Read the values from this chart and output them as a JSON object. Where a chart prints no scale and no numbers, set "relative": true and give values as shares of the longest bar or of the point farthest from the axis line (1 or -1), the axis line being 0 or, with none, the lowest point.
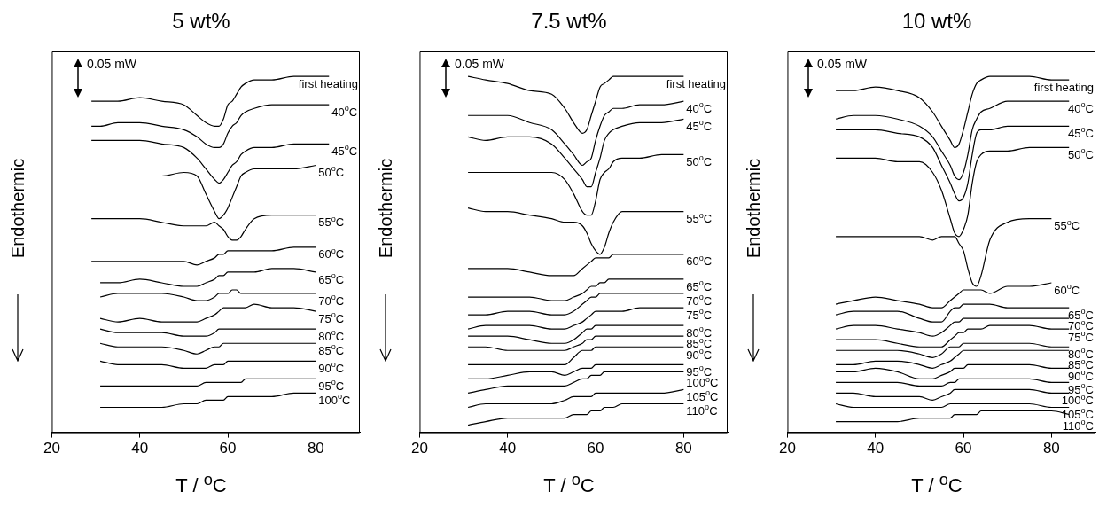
{
  "chart_data": [
    {
      "type": "line",
      "title": "5 wt%",
      "xlabel": "T / $^{o}$C",
      "ylabel": "Endothermic",
      "annotations": [
        "0.05 mW"
      ],
      "relative": true,
      "legend": false,
      "grid": false,
      "marker": "none",
      "xlim": [
        20,
        90
      ],
      "xticks": [
        20,
        40,
        60,
        80
      ],
      "x": [
        29,
        31,
        35,
        40,
        45,
        50,
        53,
        55,
        57,
        58,
        59,
        60,
        61,
        62,
        63,
        64,
        66,
        70,
        75,
        80,
        83
      ],
      "series": [
        {
          "name": "first heating",
          "color": "#000000",
          "values": [
            0.93,
            0.93,
            0.93,
            0.94,
            0.93,
            0.92,
            0.89,
            0.87,
            0.86,
            0.86,
            0.88,
            0.92,
            0.93,
            0.95,
            0.97,
            0.98,
            0.99,
            0.99,
            1.0,
            1.0,
            1.0
          ]
        },
        {
          "name": "40$^{o}$C",
          "color": "#000000",
          "values": [
            0.86,
            0.86,
            0.87,
            0.87,
            0.86,
            0.85,
            0.83,
            0.81,
            0.8,
            0.8,
            0.81,
            0.84,
            0.86,
            0.87,
            0.89,
            0.9,
            0.91,
            0.92,
            0.92,
            0.92,
            0.92
          ]
        },
        {
          "name": "45$^{o}$C",
          "color": "#000000",
          "values": [
            0.82,
            0.82,
            0.82,
            0.82,
            0.81,
            0.8,
            0.77,
            0.74,
            0.71,
            0.7,
            0.71,
            0.73,
            0.75,
            0.76,
            0.78,
            0.79,
            0.8,
            0.8,
            0.81,
            0.81,
            0.81
          ]
        },
        {
          "name": "50$^{o}$C",
          "color": "#000000",
          "values": [
            0.72,
            0.72,
            0.72,
            0.72,
            0.72,
            0.73,
            0.72,
            0.67,
            0.62,
            0.6,
            0.61,
            0.63,
            0.66,
            0.69,
            0.72,
            0.73,
            0.74,
            0.74,
            0.74,
            0.75,
            null
          ]
        },
        {
          "name": "55$^{o}$C",
          "color": "#000000",
          "values": [
            0.6,
            0.6,
            0.6,
            0.6,
            0.59,
            0.58,
            0.58,
            0.58,
            0.59,
            0.58,
            0.57,
            0.55,
            0.54,
            0.54,
            0.55,
            0.57,
            0.6,
            0.61,
            0.61,
            0.61,
            null
          ]
        },
        {
          "name": "60$^{o}$C",
          "color": "#000000",
          "values": [
            0.48,
            0.48,
            0.48,
            0.48,
            0.48,
            0.48,
            0.47,
            0.48,
            0.49,
            0.5,
            0.5,
            0.51,
            0.51,
            0.51,
            0.51,
            0.51,
            0.51,
            0.51,
            0.52,
            0.52,
            null
          ]
        },
        {
          "name": "65$^{o}$C",
          "color": "#000000",
          "values": [
            null,
            0.42,
            0.42,
            0.43,
            0.42,
            0.41,
            0.41,
            0.42,
            0.43,
            0.44,
            0.44,
            0.45,
            0.45,
            0.45,
            0.45,
            0.45,
            0.45,
            0.46,
            0.46,
            0.45,
            null
          ]
        },
        {
          "name": "70$^{o}$C",
          "color": "#000000",
          "values": [
            null,
            0.38,
            0.39,
            0.39,
            0.39,
            0.38,
            0.37,
            0.37,
            0.38,
            0.39,
            0.39,
            0.39,
            0.4,
            0.4,
            0.39,
            0.39,
            0.39,
            0.39,
            0.39,
            0.39,
            null
          ]
        },
        {
          "name": "75$^{o}$C",
          "color": "#000000",
          "values": [
            null,
            0.32,
            0.31,
            0.32,
            0.31,
            0.31,
            0.31,
            0.32,
            0.33,
            0.34,
            0.35,
            0.35,
            0.35,
            0.35,
            0.35,
            0.35,
            0.36,
            0.35,
            0.35,
            0.34,
            null
          ]
        },
        {
          "name": "80$^{o}$C",
          "color": "#000000",
          "values": [
            null,
            0.29,
            0.28,
            0.28,
            0.28,
            0.27,
            0.27,
            0.27,
            0.28,
            0.29,
            0.29,
            0.29,
            0.29,
            0.29,
            0.29,
            0.29,
            0.29,
            0.29,
            0.29,
            0.29,
            null
          ]
        },
        {
          "name": "85$^{o}$C",
          "color": "#000000",
          "values": [
            null,
            0.25,
            0.24,
            0.24,
            0.24,
            0.23,
            0.22,
            0.23,
            0.24,
            0.24,
            0.25,
            0.25,
            0.25,
            0.25,
            0.25,
            0.25,
            0.25,
            0.25,
            0.25,
            0.25,
            null
          ]
        },
        {
          "name": "90$^{o}$C",
          "color": "#000000",
          "values": [
            null,
            0.2,
            0.19,
            0.19,
            0.19,
            0.18,
            0.18,
            0.18,
            0.19,
            0.19,
            0.19,
            0.2,
            0.2,
            0.2,
            0.2,
            0.2,
            0.2,
            0.2,
            0.2,
            0.2,
            null
          ]
        },
        {
          "name": "95$^{o}$C",
          "color": "#000000",
          "values": [
            null,
            0.13,
            0.13,
            0.13,
            0.13,
            0.13,
            0.13,
            0.14,
            0.14,
            0.14,
            0.14,
            0.14,
            0.14,
            0.14,
            0.14,
            0.15,
            0.15,
            0.15,
            0.15,
            0.15,
            null
          ]
        },
        {
          "name": "100$^{o}$C",
          "color": "#000000",
          "values": [
            null,
            0.07,
            0.07,
            0.07,
            0.07,
            0.08,
            0.08,
            0.09,
            0.09,
            0.09,
            0.09,
            0.1,
            0.1,
            0.1,
            0.1,
            0.1,
            0.1,
            0.1,
            0.11,
            0.11,
            null
          ]
        }
      ]
    },
    {
      "type": "line",
      "title": "7.5 wt%",
      "xlabel": "T / $^{o}$C",
      "ylabel": "Endothermic",
      "annotations": [
        "0.05 mW"
      ],
      "relative": true,
      "legend": false,
      "grid": false,
      "marker": "none",
      "xlim": [
        20,
        90
      ],
      "xticks": [
        20,
        40,
        60,
        80
      ],
      "x": [
        31,
        35,
        40,
        45,
        50,
        53,
        55,
        57,
        58,
        59,
        60,
        61,
        62,
        63,
        64,
        66,
        70,
        75,
        80
      ],
      "series": [
        {
          "name": "first heating",
          "color": "#000000",
          "values": [
            1.0,
            0.99,
            0.98,
            0.96,
            0.95,
            0.91,
            0.87,
            0.84,
            0.85,
            0.89,
            0.93,
            0.97,
            0.98,
            0.99,
            1.0,
            1.0,
            1.0,
            1.0,
            1.0
          ]
        },
        {
          "name": "40$^{o}$C",
          "color": "#000000",
          "values": [
            0.89,
            0.89,
            0.89,
            0.87,
            0.85,
            0.81,
            0.78,
            0.75,
            0.76,
            0.77,
            0.82,
            0.86,
            0.89,
            0.9,
            0.91,
            0.91,
            0.92,
            0.92,
            0.93
          ]
        },
        {
          "name": "45$^{o}$C",
          "color": "#000000",
          "values": [
            0.83,
            0.82,
            0.83,
            0.83,
            0.81,
            0.77,
            0.74,
            0.71,
            0.69,
            0.69,
            0.73,
            0.77,
            0.82,
            0.84,
            0.85,
            0.86,
            0.87,
            0.87,
            0.88
          ]
        },
        {
          "name": "50$^{o}$C",
          "color": "#000000",
          "values": [
            0.73,
            0.73,
            0.73,
            0.73,
            0.73,
            0.71,
            0.67,
            0.62,
            0.61,
            0.61,
            0.65,
            0.71,
            0.73,
            0.74,
            0.76,
            0.77,
            0.77,
            0.78,
            0.78
          ]
        },
        {
          "name": "55$^{o}$C",
          "color": "#000000",
          "values": [
            0.63,
            0.62,
            0.62,
            0.61,
            0.6,
            0.59,
            0.59,
            0.58,
            0.56,
            0.53,
            0.51,
            0.5,
            0.52,
            0.56,
            0.59,
            0.62,
            0.62,
            0.62,
            0.62
          ]
        },
        {
          "name": "60$^{o}$C",
          "color": "#000000",
          "values": [
            0.46,
            0.46,
            0.46,
            0.45,
            0.44,
            0.44,
            0.44,
            0.46,
            0.47,
            0.48,
            0.49,
            0.49,
            0.49,
            0.49,
            0.5,
            0.5,
            0.5,
            0.5,
            0.5
          ]
        },
        {
          "name": "65$^{o}$C",
          "color": "#000000",
          "values": [
            0.38,
            0.38,
            0.38,
            0.38,
            0.37,
            0.37,
            0.38,
            0.39,
            0.4,
            0.41,
            0.41,
            0.42,
            0.42,
            0.43,
            0.43,
            0.43,
            0.43,
            0.43,
            0.43
          ]
        },
        {
          "name": "70$^{o}$C",
          "color": "#000000",
          "values": [
            0.33,
            0.33,
            0.34,
            0.34,
            0.33,
            0.33,
            0.34,
            0.36,
            0.37,
            0.38,
            0.38,
            0.39,
            0.39,
            0.39,
            0.39,
            0.39,
            0.39,
            0.39,
            0.39
          ]
        },
        {
          "name": "75$^{o}$C",
          "color": "#000000",
          "values": [
            0.29,
            0.3,
            0.3,
            0.3,
            0.29,
            0.29,
            0.3,
            0.31,
            0.32,
            0.33,
            0.34,
            0.34,
            0.34,
            0.34,
            0.34,
            0.34,
            0.35,
            0.35,
            0.35
          ]
        },
        {
          "name": "80$^{o}$C",
          "color": "#000000",
          "values": [
            0.27,
            0.27,
            0.27,
            0.26,
            0.25,
            0.25,
            0.26,
            0.28,
            0.29,
            0.29,
            0.3,
            0.3,
            0.3,
            0.3,
            0.3,
            0.3,
            0.3,
            0.3,
            0.3
          ]
        },
        {
          "name": "85$^{o}$C",
          "color": "#000000",
          "values": [
            0.24,
            0.24,
            0.23,
            0.23,
            0.23,
            0.23,
            0.24,
            0.25,
            0.26,
            0.26,
            0.27,
            0.27,
            0.27,
            0.27,
            0.27,
            0.27,
            0.27,
            0.27,
            0.27
          ]
        },
        {
          "name": "90$^{o}$C",
          "color": "#000000",
          "values": [
            0.19,
            0.19,
            0.19,
            0.19,
            0.19,
            0.19,
            0.21,
            0.23,
            0.23,
            0.23,
            0.24,
            0.24,
            0.24,
            0.24,
            0.24,
            0.24,
            0.24,
            0.24,
            0.24
          ]
        },
        {
          "name": "95$^{o}$C",
          "color": "#000000",
          "values": [
            0.15,
            0.15,
            0.16,
            0.17,
            0.17,
            0.16,
            0.17,
            0.18,
            0.18,
            0.18,
            0.19,
            0.19,
            0.19,
            0.19,
            0.19,
            0.19,
            0.19,
            0.19,
            0.19
          ]
        },
        {
          "name": "100$^{o}$C",
          "color": "#000000",
          "values": [
            0.11,
            0.12,
            0.13,
            0.13,
            0.13,
            0.13,
            0.14,
            0.15,
            0.15,
            0.16,
            0.16,
            0.16,
            0.17,
            0.17,
            0.17,
            0.17,
            0.17,
            0.17,
            0.17
          ]
        },
        {
          "name": "105$^{o}$C",
          "color": "#000000",
          "values": [
            0.07,
            0.08,
            0.08,
            0.08,
            0.08,
            0.09,
            0.1,
            0.1,
            0.1,
            0.1,
            0.11,
            0.11,
            0.11,
            0.11,
            0.11,
            0.11,
            0.11,
            0.11,
            0.12
          ]
        },
        {
          "name": "110$^{o}$C",
          "color": "#000000",
          "values": [
            0.02,
            0.03,
            0.04,
            0.04,
            0.04,
            0.04,
            0.05,
            0.05,
            0.05,
            0.06,
            0.06,
            0.06,
            0.07,
            0.07,
            0.07,
            0.08,
            0.08,
            0.08,
            0.08
          ]
        }
      ]
    },
    {
      "type": "line",
      "title": "10 wt%",
      "xlabel": "T / $^{o}$C",
      "ylabel": "Endothermic",
      "annotations": [
        "0.05 mW"
      ],
      "relative": true,
      "legend": false,
      "grid": false,
      "marker": "none",
      "xlim": [
        20,
        90
      ],
      "xticks": [
        20,
        40,
        60,
        80
      ],
      "x": [
        31,
        35,
        40,
        45,
        50,
        53,
        55,
        57,
        58,
        59,
        60,
        61,
        62,
        63,
        64,
        66,
        70,
        75,
        80,
        84
      ],
      "series": [
        {
          "name": "first heating",
          "color": "#000000",
          "values": [
            0.96,
            0.96,
            0.97,
            0.96,
            0.94,
            0.9,
            0.86,
            0.82,
            0.8,
            0.81,
            0.85,
            0.9,
            0.95,
            0.98,
            0.99,
            1.0,
            1.0,
            1.0,
            0.99,
            0.99
          ]
        },
        {
          "name": "40$^{o}$C",
          "color": "#000000",
          "values": [
            0.88,
            0.89,
            0.89,
            0.88,
            0.86,
            0.83,
            0.79,
            0.75,
            0.72,
            0.71,
            0.73,
            0.78,
            0.85,
            0.88,
            0.9,
            0.91,
            0.93,
            0.93,
            0.93,
            0.93
          ]
        },
        {
          "name": "45$^{o}$C",
          "color": "#000000",
          "values": [
            0.85,
            0.85,
            0.85,
            0.84,
            0.83,
            0.8,
            0.75,
            0.7,
            0.67,
            0.65,
            0.66,
            0.7,
            0.78,
            0.84,
            0.85,
            0.85,
            0.86,
            0.86,
            0.86,
            0.86
          ]
        },
        {
          "name": "50$^{o}$C",
          "color": "#000000",
          "values": [
            0.77,
            0.77,
            0.77,
            0.76,
            0.76,
            0.73,
            0.68,
            0.6,
            0.56,
            0.55,
            0.57,
            0.61,
            0.7,
            0.76,
            0.78,
            0.79,
            0.79,
            0.8,
            0.8,
            0.8
          ]
        },
        {
          "name": "55$^{o}$C",
          "color": "#000000",
          "values": [
            0.55,
            0.55,
            0.55,
            0.55,
            0.55,
            0.54,
            0.55,
            0.55,
            0.55,
            0.53,
            0.51,
            0.46,
            0.42,
            0.41,
            0.44,
            0.54,
            0.59,
            0.6,
            0.6,
            null
          ]
        },
        {
          "name": "60$^{o}$C",
          "color": "#000000",
          "values": [
            0.36,
            0.37,
            0.38,
            0.37,
            0.36,
            0.35,
            0.35,
            0.37,
            0.38,
            0.39,
            0.4,
            0.4,
            0.4,
            0.4,
            0.4,
            0.39,
            0.41,
            0.41,
            0.42,
            null
          ]
        },
        {
          "name": "65$^{o}$C",
          "color": "#000000",
          "values": [
            0.33,
            0.34,
            0.34,
            0.34,
            0.32,
            0.31,
            0.31,
            0.34,
            0.35,
            0.35,
            0.36,
            0.36,
            0.36,
            0.36,
            0.36,
            0.36,
            0.35,
            0.35,
            0.35,
            0.35
          ]
        },
        {
          "name": "70$^{o}$C",
          "color": "#000000",
          "values": [
            0.29,
            0.3,
            0.3,
            0.29,
            0.28,
            0.27,
            0.28,
            0.3,
            0.31,
            0.31,
            0.32,
            0.32,
            0.32,
            0.32,
            0.32,
            0.32,
            0.32,
            0.32,
            0.32,
            0.32
          ]
        },
        {
          "name": "75$^{o}$C",
          "color": "#000000",
          "values": [
            0.26,
            0.26,
            0.26,
            0.25,
            0.24,
            0.24,
            0.24,
            0.26,
            0.27,
            0.28,
            0.28,
            0.29,
            0.29,
            0.29,
            0.29,
            0.3,
            0.3,
            0.3,
            0.29,
            0.29
          ]
        },
        {
          "name": "80$^{o}$C",
          "color": "#000000",
          "values": [
            0.23,
            0.23,
            0.23,
            0.23,
            0.22,
            0.21,
            0.22,
            0.24,
            0.24,
            0.24,
            0.25,
            0.25,
            0.25,
            0.25,
            0.25,
            0.25,
            0.25,
            0.25,
            0.24,
            0.24
          ]
        },
        {
          "name": "85$^{o}$C",
          "color": "#000000",
          "values": [
            0.19,
            0.19,
            0.2,
            0.2,
            0.19,
            0.18,
            0.19,
            0.2,
            0.21,
            0.22,
            0.23,
            0.23,
            0.23,
            0.23,
            0.23,
            0.23,
            0.23,
            0.23,
            0.23,
            0.23
          ]
        },
        {
          "name": "90$^{o}$C",
          "color": "#000000",
          "values": [
            0.17,
            0.17,
            0.18,
            0.17,
            0.15,
            0.15,
            0.16,
            0.17,
            0.18,
            0.18,
            0.18,
            0.19,
            0.19,
            0.19,
            0.19,
            0.19,
            0.19,
            0.19,
            0.18,
            0.18
          ]
        },
        {
          "name": "95$^{o}$C",
          "color": "#000000",
          "values": [
            0.14,
            0.14,
            0.14,
            0.14,
            0.13,
            0.13,
            0.13,
            0.14,
            0.14,
            0.15,
            0.15,
            0.15,
            0.15,
            0.15,
            0.15,
            0.15,
            0.15,
            0.15,
            0.14,
            0.14
          ]
        },
        {
          "name": "100$^{o}$C",
          "color": "#000000",
          "values": [
            0.11,
            0.11,
            0.1,
            0.1,
            0.1,
            0.09,
            0.1,
            0.11,
            0.12,
            0.12,
            0.12,
            0.12,
            0.12,
            0.12,
            0.12,
            0.12,
            0.12,
            0.12,
            0.11,
            0.11
          ]
        },
        {
          "name": "105$^{o}$C",
          "color": "#000000",
          "values": [
            0.08,
            0.07,
            0.07,
            0.07,
            0.07,
            0.07,
            0.07,
            0.08,
            0.08,
            0.08,
            0.08,
            0.08,
            0.08,
            0.08,
            0.08,
            0.08,
            0.08,
            0.08,
            0.07,
            0.07
          ]
        },
        {
          "name": "110$^{o}$C",
          "color": "#000000",
          "values": [
            0.03,
            0.03,
            0.03,
            0.03,
            0.04,
            0.04,
            0.04,
            0.04,
            0.05,
            0.05,
            0.05,
            0.05,
            0.05,
            0.05,
            0.06,
            0.06,
            0.06,
            0.06,
            0.06,
            0.05
          ]
        }
      ]
    }
  ]
}
